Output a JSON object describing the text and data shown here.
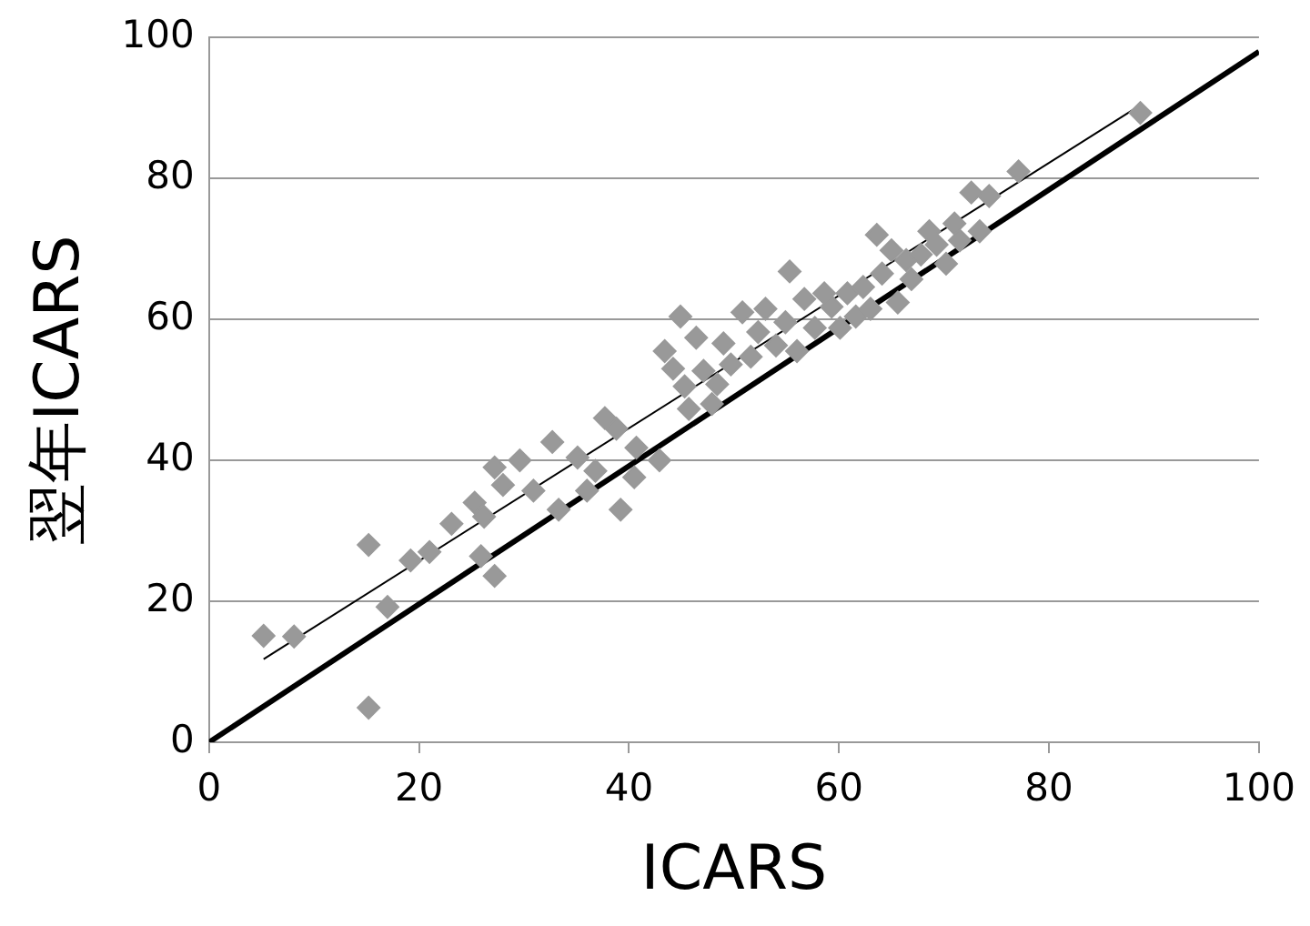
{
  "chart_data": {
    "type": "scatter",
    "xlabel": "ICARS",
    "ylabel": "翌年ICARS",
    "xlim": [
      0,
      100
    ],
    "ylim": [
      0,
      100
    ],
    "xticks": [
      0,
      20,
      40,
      60,
      80,
      100
    ],
    "yticks": [
      0,
      20,
      40,
      60,
      80,
      100
    ],
    "grid": "y",
    "legend": false,
    "series": [
      {
        "color": "#999999",
        "marker": "diamond",
        "x": [
          5.2,
          8.1,
          15.2,
          15.2,
          17,
          19.2,
          21,
          23.1,
          25.3,
          26.2,
          27.2,
          25.9,
          27.2,
          28,
          29.6,
          30.9,
          32.7,
          33.3,
          35.1,
          36,
          36.8,
          37.7,
          38.8,
          39.2,
          40.7,
          40.5,
          42.9,
          43.4,
          44.2,
          44.9,
          45.3,
          45.7,
          46.4,
          47.1,
          47.9,
          48.4,
          49,
          49.7,
          50.8,
          51.6,
          52.3,
          53,
          54,
          54.9,
          55.3,
          56,
          56.7,
          57.7,
          58.6,
          59.3,
          60.1,
          60.8,
          61.6,
          62.3,
          63,
          63.6,
          64.1,
          65,
          65.6,
          66.4,
          66.9,
          67.8,
          68.6,
          69.3,
          70.2,
          71,
          71.5,
          72.6,
          73.4,
          74.3,
          77.1,
          88.7
        ],
        "values": [
          15.1,
          15,
          28,
          4.9,
          19.2,
          25.8,
          27,
          31,
          34,
          32,
          23.6,
          26.4,
          39,
          36.5,
          40,
          35.7,
          42.6,
          33,
          40.4,
          35.7,
          38.5,
          46,
          44.5,
          33,
          41.8,
          37.6,
          40,
          55.5,
          53,
          60.4,
          50.5,
          47.3,
          57.4,
          52.7,
          48,
          50.8,
          56.6,
          53.6,
          61,
          54.7,
          58.2,
          61.5,
          56.3,
          59.6,
          66.8,
          55.5,
          62.9,
          58.8,
          63.7,
          61.8,
          58.8,
          63.7,
          60.4,
          64.6,
          61.5,
          72,
          66.5,
          69.8,
          62.4,
          68.4,
          65.7,
          69.2,
          72.5,
          70.6,
          67.9,
          73.6,
          71.2,
          78,
          72.5,
          77.5,
          81,
          89.3
        ]
      },
      {
        "type": "line",
        "color": "#000000",
        "marker": "none",
        "x": [
          5.2,
          88.7
        ],
        "values": [
          11.8,
          90.4
        ]
      },
      {
        "type": "line",
        "color": "#000000",
        "marker": "none",
        "x": [
          0,
          100
        ],
        "values": [
          0,
          98
        ]
      }
    ]
  }
}
